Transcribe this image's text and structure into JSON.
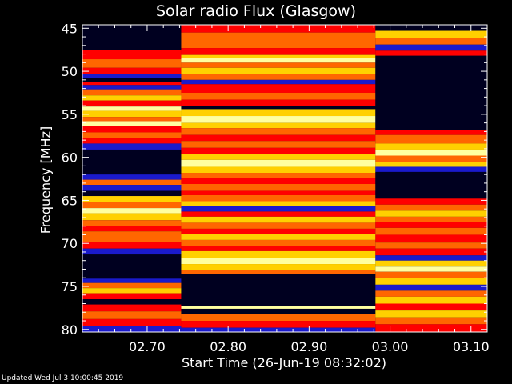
{
  "chart_data": {
    "type": "heatmap",
    "title": "Solar radio Flux (Glasgow)",
    "xlabel": "Start Time (26-Jun-19 08:32:02)",
    "ylabel": "Frequency [MHz]",
    "x_ticks": [
      "02.70",
      "02.80",
      "02.90",
      "03.00",
      "03.10"
    ],
    "x_tick_values": [
      2.7,
      2.8,
      2.9,
      3.0,
      3.1
    ],
    "y_ticks": [
      "45",
      "50",
      "55",
      "60",
      "65",
      "70",
      "75",
      "80"
    ],
    "y_tick_values": [
      45,
      50,
      55,
      60,
      65,
      70,
      75,
      80
    ],
    "xlim": [
      2.62,
      3.12
    ],
    "ylim": [
      80.3,
      44.6
    ],
    "y_inverted": true,
    "colormap": [
      "#000020",
      "#1a1acc",
      "#ff0000",
      "#ff6600",
      "#ffd000",
      "#ffffa0"
    ],
    "background": "#000000",
    "segments": [
      {
        "x_start": 2.62,
        "x_end": 2.742,
        "bands": [
          [
            44.6,
            47.5,
            0
          ],
          [
            47.5,
            48.6,
            2
          ],
          [
            48.6,
            49.6,
            3
          ],
          [
            49.6,
            50.3,
            2
          ],
          [
            50.3,
            50.8,
            1
          ],
          [
            50.8,
            51.2,
            0
          ],
          [
            51.2,
            51.6,
            2
          ],
          [
            51.6,
            52.1,
            1
          ],
          [
            52.1,
            52.8,
            3
          ],
          [
            52.8,
            53.4,
            4
          ],
          [
            53.4,
            54.1,
            2
          ],
          [
            54.1,
            54.6,
            5
          ],
          [
            54.6,
            55.3,
            4
          ],
          [
            55.3,
            55.8,
            3
          ],
          [
            55.8,
            56.4,
            5
          ],
          [
            56.4,
            57.1,
            2
          ],
          [
            57.1,
            57.8,
            3
          ],
          [
            57.8,
            58.4,
            2
          ],
          [
            58.4,
            59.1,
            1
          ],
          [
            59.1,
            62.0,
            0
          ],
          [
            62.0,
            62.6,
            1
          ],
          [
            62.6,
            63.2,
            3
          ],
          [
            63.2,
            63.9,
            1
          ],
          [
            63.9,
            64.5,
            0
          ],
          [
            64.5,
            65.2,
            4
          ],
          [
            65.2,
            65.9,
            3
          ],
          [
            65.9,
            66.5,
            5
          ],
          [
            66.5,
            67.3,
            4
          ],
          [
            67.3,
            68.0,
            3
          ],
          [
            68.0,
            68.6,
            2
          ],
          [
            68.6,
            69.8,
            3
          ],
          [
            69.8,
            70.6,
            2
          ],
          [
            70.6,
            71.3,
            1
          ],
          [
            71.3,
            74.1,
            0
          ],
          [
            74.1,
            74.6,
            1
          ],
          [
            74.6,
            75.2,
            3
          ],
          [
            75.2,
            75.8,
            4
          ],
          [
            75.8,
            76.5,
            2
          ],
          [
            76.5,
            77.1,
            0
          ],
          [
            77.1,
            77.9,
            2
          ],
          [
            77.9,
            78.8,
            3
          ],
          [
            78.8,
            79.6,
            2
          ],
          [
            79.6,
            80.3,
            1
          ]
        ]
      },
      {
        "x_start": 2.742,
        "x_end": 2.982,
        "bands": [
          [
            44.6,
            45.5,
            2
          ],
          [
            45.5,
            47.3,
            3
          ],
          [
            47.3,
            48.1,
            2
          ],
          [
            48.1,
            48.5,
            4
          ],
          [
            48.5,
            49.0,
            5
          ],
          [
            49.0,
            49.6,
            3
          ],
          [
            49.6,
            50.3,
            4
          ],
          [
            50.3,
            51.0,
            3
          ],
          [
            51.0,
            51.5,
            1
          ],
          [
            51.5,
            52.5,
            2
          ],
          [
            52.5,
            53.3,
            3
          ],
          [
            53.3,
            54.0,
            2
          ],
          [
            54.0,
            54.4,
            0
          ],
          [
            54.4,
            55.2,
            4
          ],
          [
            55.2,
            56.0,
            5
          ],
          [
            56.0,
            56.6,
            4
          ],
          [
            56.6,
            57.4,
            3
          ],
          [
            57.4,
            58.1,
            2
          ],
          [
            58.1,
            58.9,
            3
          ],
          [
            58.9,
            59.6,
            2
          ],
          [
            59.6,
            60.3,
            4
          ],
          [
            60.3,
            61.1,
            5
          ],
          [
            61.1,
            61.8,
            4
          ],
          [
            61.8,
            62.4,
            3
          ],
          [
            62.4,
            63.1,
            2
          ],
          [
            63.1,
            63.9,
            3
          ],
          [
            63.9,
            64.4,
            2
          ],
          [
            64.4,
            65.1,
            3
          ],
          [
            65.1,
            65.7,
            4
          ],
          [
            65.7,
            66.3,
            1
          ],
          [
            66.3,
            66.9,
            2
          ],
          [
            66.9,
            67.6,
            4
          ],
          [
            67.6,
            68.3,
            3
          ],
          [
            68.3,
            68.9,
            2
          ],
          [
            68.9,
            69.6,
            4
          ],
          [
            69.6,
            70.3,
            3
          ],
          [
            70.3,
            70.9,
            2
          ],
          [
            70.9,
            71.7,
            4
          ],
          [
            71.7,
            72.4,
            5
          ],
          [
            72.4,
            73.1,
            4
          ],
          [
            73.1,
            73.6,
            3
          ],
          [
            73.6,
            74.1,
            0
          ],
          [
            74.1,
            77.3,
            0
          ],
          [
            77.3,
            77.6,
            5
          ],
          [
            77.6,
            78.2,
            0
          ],
          [
            78.2,
            79.0,
            3
          ],
          [
            79.0,
            79.8,
            2
          ],
          [
            79.8,
            80.3,
            1
          ]
        ]
      },
      {
        "x_start": 2.982,
        "x_end": 3.12,
        "bands": [
          [
            44.6,
            45.3,
            0
          ],
          [
            45.3,
            46.1,
            4
          ],
          [
            46.1,
            46.9,
            3
          ],
          [
            46.9,
            47.6,
            1
          ],
          [
            47.6,
            48.2,
            2
          ],
          [
            48.2,
            56.8,
            0
          ],
          [
            56.8,
            57.4,
            2
          ],
          [
            57.4,
            58.4,
            3
          ],
          [
            58.4,
            59.1,
            4
          ],
          [
            59.1,
            59.8,
            5
          ],
          [
            59.8,
            60.5,
            3
          ],
          [
            60.5,
            61.1,
            4
          ],
          [
            61.1,
            61.7,
            1
          ],
          [
            61.7,
            64.8,
            0
          ],
          [
            64.8,
            65.5,
            2
          ],
          [
            65.5,
            66.2,
            3
          ],
          [
            66.2,
            66.9,
            4
          ],
          [
            66.9,
            67.5,
            3
          ],
          [
            67.5,
            68.2,
            2
          ],
          [
            68.2,
            69.0,
            3
          ],
          [
            69.0,
            69.9,
            2
          ],
          [
            69.9,
            70.6,
            3
          ],
          [
            70.6,
            71.4,
            2
          ],
          [
            71.4,
            72.0,
            1
          ],
          [
            72.0,
            72.7,
            4
          ],
          [
            72.7,
            73.3,
            5
          ],
          [
            73.3,
            74.0,
            3
          ],
          [
            74.0,
            74.8,
            4
          ],
          [
            74.8,
            75.5,
            1
          ],
          [
            75.5,
            76.2,
            3
          ],
          [
            76.2,
            77.0,
            4
          ],
          [
            77.0,
            77.8,
            2
          ],
          [
            77.8,
            78.6,
            4
          ],
          [
            78.6,
            79.4,
            3
          ],
          [
            79.4,
            80.3,
            2
          ]
        ]
      }
    ]
  },
  "footer": "Updated Wed Jul  3 10:00:45 2019"
}
